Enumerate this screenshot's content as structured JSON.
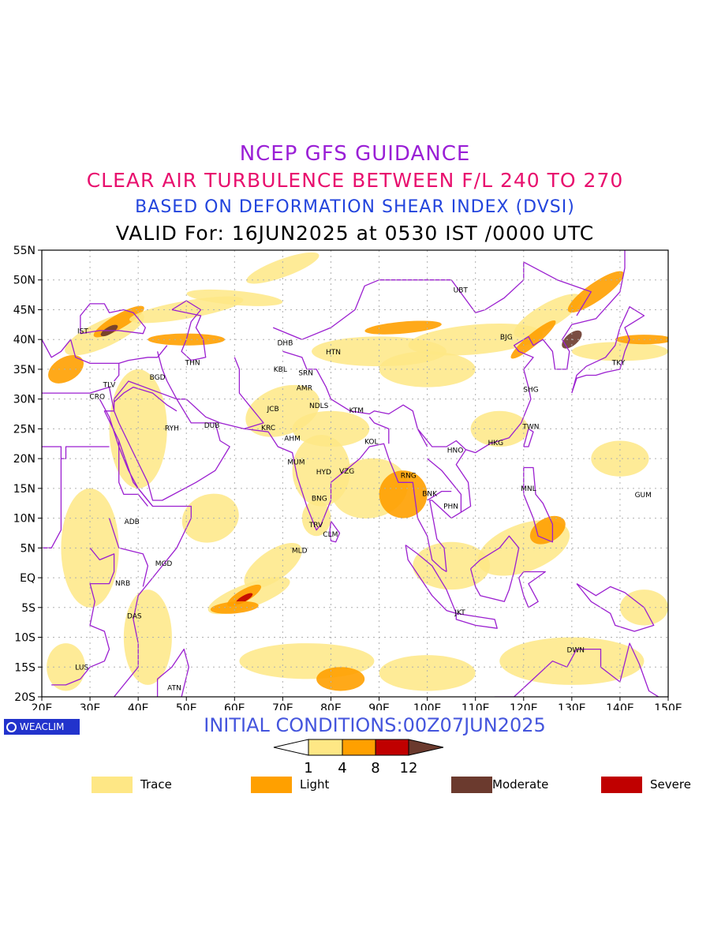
{
  "titles": {
    "line1": "NCEP GFS GUIDANCE",
    "line2": "CLEAR AIR TURBULENCE BETWEEN F/L 240 TO 270",
    "line3": "BASED ON DEFORMATION SHEAR INDEX (DVSI)",
    "line4": "VALID For: 16JUN2025 at 0530 IST /0000 UTC"
  },
  "colors": {
    "title1": "#9a1fd6",
    "title2": "#e8106e",
    "title3": "#2244dd",
    "boundary": "#9b1fd0",
    "grid": "#b0b0b0",
    "trace": "#fee785",
    "light": "#ffa000",
    "severe": "#c00000",
    "moderate": "#6b3a2e",
    "init": "#4455dd"
  },
  "map": {
    "lon_range": [
      20,
      150
    ],
    "lat_range": [
      -20,
      55
    ],
    "x_ticks": [
      "20E",
      "30E",
      "40E",
      "50E",
      "60E",
      "70E",
      "80E",
      "90E",
      "100E",
      "110E",
      "120E",
      "130E",
      "140E",
      "150E"
    ],
    "y_ticks": [
      "55N",
      "50N",
      "45N",
      "40N",
      "35N",
      "30N",
      "25N",
      "20N",
      "15N",
      "10N",
      "5N",
      "EQ",
      "5S",
      "10S",
      "15S",
      "20S"
    ],
    "stations": [
      {
        "code": "IST",
        "lon": 28.5,
        "lat": 41.0
      },
      {
        "code": "TLV",
        "lon": 34.0,
        "lat": 32.0
      },
      {
        "code": "CRO",
        "lon": 31.5,
        "lat": 30.0
      },
      {
        "code": "BGD",
        "lon": 44.0,
        "lat": 33.3
      },
      {
        "code": "THN",
        "lon": 51.3,
        "lat": 35.7
      },
      {
        "code": "RYH",
        "lon": 47.0,
        "lat": 24.7
      },
      {
        "code": "DUB",
        "lon": 55.3,
        "lat": 25.2
      },
      {
        "code": "DHB",
        "lon": 70.5,
        "lat": 39.0
      },
      {
        "code": "HTN",
        "lon": 80.5,
        "lat": 37.5
      },
      {
        "code": "KBL",
        "lon": 69.5,
        "lat": 34.6
      },
      {
        "code": "SRN",
        "lon": 74.8,
        "lat": 34.0
      },
      {
        "code": "JCB",
        "lon": 68.0,
        "lat": 28.0
      },
      {
        "code": "AMR",
        "lon": 74.5,
        "lat": 31.5
      },
      {
        "code": "NDLS",
        "lon": 77.5,
        "lat": 28.5
      },
      {
        "code": "KTM",
        "lon": 85.3,
        "lat": 27.7
      },
      {
        "code": "KRC",
        "lon": 67.0,
        "lat": 24.8
      },
      {
        "code": "AHM",
        "lon": 72.0,
        "lat": 23.0
      },
      {
        "code": "KOL",
        "lon": 88.4,
        "lat": 22.5
      },
      {
        "code": "MUM",
        "lon": 72.8,
        "lat": 19.0
      },
      {
        "code": "HYD",
        "lon": 78.5,
        "lat": 17.4
      },
      {
        "code": "VZG",
        "lon": 83.3,
        "lat": 17.5
      },
      {
        "code": "RNG",
        "lon": 96.1,
        "lat": 16.8
      },
      {
        "code": "BNG",
        "lon": 77.6,
        "lat": 12.9
      },
      {
        "code": "TRV",
        "lon": 76.9,
        "lat": 8.5
      },
      {
        "code": "CLM",
        "lon": 79.9,
        "lat": 6.9
      },
      {
        "code": "MLD",
        "lon": 73.5,
        "lat": 4.2
      },
      {
        "code": "UBT",
        "lon": 106.9,
        "lat": 47.9
      },
      {
        "code": "BJG",
        "lon": 116.4,
        "lat": 40.0
      },
      {
        "code": "SHG",
        "lon": 121.5,
        "lat": 31.2
      },
      {
        "code": "TKY",
        "lon": 139.7,
        "lat": 35.7
      },
      {
        "code": "TWN",
        "lon": 121.5,
        "lat": 25.0
      },
      {
        "code": "HKG",
        "lon": 114.2,
        "lat": 22.3
      },
      {
        "code": "HNO",
        "lon": 105.8,
        "lat": 21.0
      },
      {
        "code": "BNK",
        "lon": 100.5,
        "lat": 13.7
      },
      {
        "code": "PHN",
        "lon": 104.9,
        "lat": 11.6
      },
      {
        "code": "MNL",
        "lon": 121.0,
        "lat": 14.6
      },
      {
        "code": "GUM",
        "lon": 144.8,
        "lat": 13.5
      },
      {
        "code": "ADB",
        "lon": 38.7,
        "lat": 9.0
      },
      {
        "code": "MGD",
        "lon": 45.3,
        "lat": 2.0
      },
      {
        "code": "NRB",
        "lon": 36.8,
        "lat": -1.3
      },
      {
        "code": "DAS",
        "lon": 39.2,
        "lat": -6.8
      },
      {
        "code": "LUS",
        "lon": 28.3,
        "lat": -15.4
      },
      {
        "code": "ATN",
        "lon": 47.5,
        "lat": -18.9
      },
      {
        "code": "JKT",
        "lon": 106.8,
        "lat": -6.2
      },
      {
        "code": "DWN",
        "lon": 130.8,
        "lat": -12.5
      }
    ]
  },
  "initial_conditions": "INITIAL CONDITIONS:00Z07JUN2025",
  "logo": "WEACLIM",
  "colorbar": {
    "ticks": [
      "1",
      "4",
      "8",
      "12"
    ]
  },
  "legend": [
    {
      "label": "Trace",
      "color": "#fee785"
    },
    {
      "label": "Light",
      "color": "#ffa000"
    },
    {
      "label": "Moderate",
      "color": "#6b3a2e"
    },
    {
      "label": "Severe",
      "color": "#c00000"
    }
  ]
}
